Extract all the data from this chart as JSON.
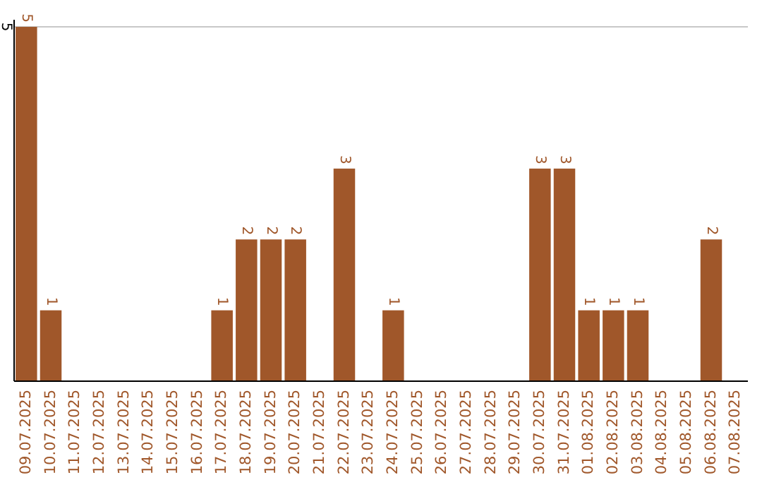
{
  "chart_data": {
    "type": "bar",
    "categories": [
      "09.07.2025",
      "10.07.2025",
      "11.07.2025",
      "12.07.2025",
      "13.07.2025",
      "14.07.2025",
      "15.07.2025",
      "16.07.2025",
      "17.07.2025",
      "18.07.2025",
      "19.07.2025",
      "20.07.2025",
      "21.07.2025",
      "22.07.2025",
      "23.07.2025",
      "24.07.2025",
      "25.07.2025",
      "26.07.2025",
      "27.07.2025",
      "28.07.2025",
      "29.07.2025",
      "30.07.2025",
      "31.07.2025",
      "01.08.2025",
      "02.08.2025",
      "03.08.2025",
      "04.08.2025",
      "05.08.2025",
      "06.08.2025",
      "07.08.2025"
    ],
    "values": [
      5,
      1,
      0,
      0,
      0,
      0,
      0,
      0,
      1,
      2,
      2,
      2,
      0,
      3,
      0,
      1,
      0,
      0,
      0,
      0,
      0,
      3,
      3,
      1,
      1,
      1,
      0,
      0,
      2,
      0
    ],
    "value_labels": [
      "5",
      "1",
      null,
      null,
      null,
      null,
      null,
      null,
      "1",
      "2",
      "2",
      "2",
      null,
      "3",
      null,
      "1",
      null,
      null,
      null,
      null,
      null,
      "3",
      "3",
      "1",
      "1",
      "1",
      null,
      null,
      "2",
      null
    ],
    "color": "#a0572a",
    "ylim": [
      0,
      5.1
    ],
    "yticks": [
      5
    ],
    "grid": "y"
  }
}
